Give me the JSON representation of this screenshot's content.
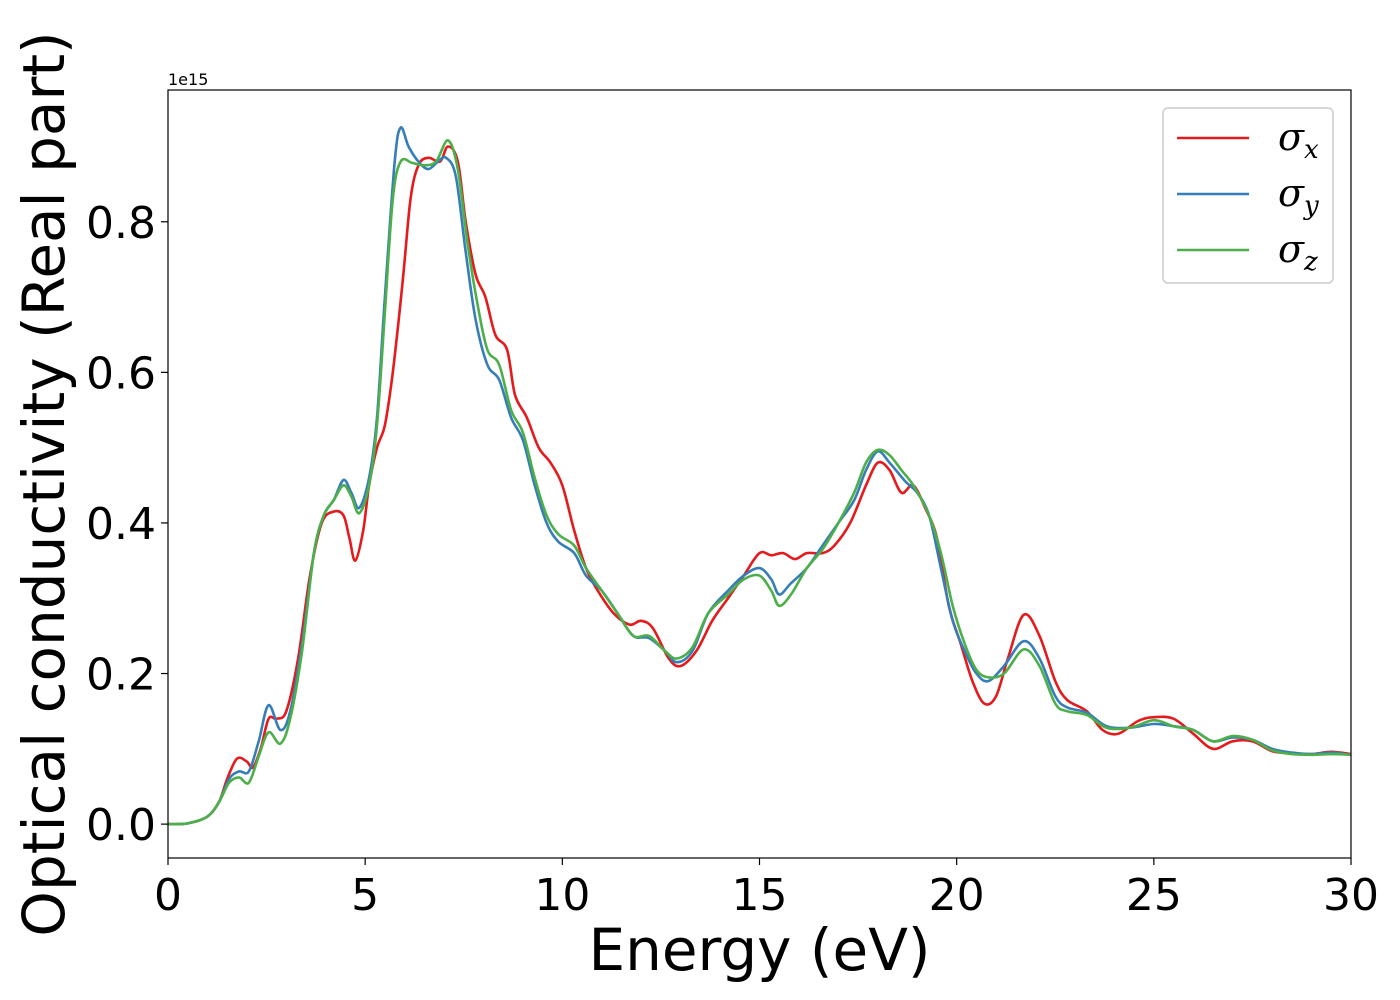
{
  "chart_data": {
    "type": "line",
    "title": "",
    "xlabel": "Energy (eV)",
    "ylabel": "Optical conductivity (Real part)",
    "y_offset_label": "1e15",
    "xlim": [
      0,
      30
    ],
    "ylim": [
      -0.045,
      0.975
    ],
    "x_ticks": [
      0,
      5,
      10,
      15,
      20,
      25,
      30
    ],
    "y_ticks": [
      0.0,
      0.2,
      0.4,
      0.6,
      0.8
    ],
    "y_tick_labels": [
      "0.0",
      "0.2",
      "0.4",
      "0.6",
      "0.8"
    ],
    "grid": false,
    "legend": "top-right",
    "series": [
      {
        "name": "σx",
        "base": "σ",
        "sub": "x",
        "color": "#e41a1c",
        "points": [
          [
            0,
            0
          ],
          [
            0.5,
            0.001
          ],
          [
            1,
            0.01
          ],
          [
            1.3,
            0.03
          ],
          [
            1.5,
            0.06
          ],
          [
            1.75,
            0.087
          ],
          [
            2.0,
            0.083
          ],
          [
            2.15,
            0.075
          ],
          [
            2.35,
            0.1
          ],
          [
            2.55,
            0.14
          ],
          [
            2.75,
            0.14
          ],
          [
            3.0,
            0.15
          ],
          [
            3.3,
            0.22
          ],
          [
            3.6,
            0.33
          ],
          [
            3.9,
            0.4
          ],
          [
            4.2,
            0.415
          ],
          [
            4.45,
            0.41
          ],
          [
            4.6,
            0.38
          ],
          [
            4.75,
            0.35
          ],
          [
            4.95,
            0.39
          ],
          [
            5.1,
            0.45
          ],
          [
            5.3,
            0.5
          ],
          [
            5.5,
            0.53
          ],
          [
            5.7,
            0.6
          ],
          [
            5.95,
            0.72
          ],
          [
            6.15,
            0.83
          ],
          [
            6.35,
            0.875
          ],
          [
            6.6,
            0.885
          ],
          [
            6.9,
            0.88
          ],
          [
            7.1,
            0.9
          ],
          [
            7.35,
            0.88
          ],
          [
            7.55,
            0.8
          ],
          [
            7.8,
            0.73
          ],
          [
            8.05,
            0.7
          ],
          [
            8.3,
            0.65
          ],
          [
            8.6,
            0.63
          ],
          [
            8.8,
            0.57
          ],
          [
            9.1,
            0.54
          ],
          [
            9.4,
            0.5
          ],
          [
            9.7,
            0.48
          ],
          [
            10.0,
            0.45
          ],
          [
            10.3,
            0.39
          ],
          [
            10.6,
            0.34
          ],
          [
            10.9,
            0.31
          ],
          [
            11.3,
            0.28
          ],
          [
            11.7,
            0.265
          ],
          [
            12.0,
            0.27
          ],
          [
            12.3,
            0.26
          ],
          [
            12.7,
            0.22
          ],
          [
            13.0,
            0.21
          ],
          [
            13.4,
            0.23
          ],
          [
            13.8,
            0.27
          ],
          [
            14.2,
            0.3
          ],
          [
            14.6,
            0.33
          ],
          [
            15.0,
            0.36
          ],
          [
            15.3,
            0.357
          ],
          [
            15.6,
            0.36
          ],
          [
            15.9,
            0.352
          ],
          [
            16.2,
            0.36
          ],
          [
            16.6,
            0.36
          ],
          [
            16.9,
            0.37
          ],
          [
            17.3,
            0.4
          ],
          [
            17.7,
            0.45
          ],
          [
            18.0,
            0.48
          ],
          [
            18.3,
            0.47
          ],
          [
            18.6,
            0.44
          ],
          [
            18.9,
            0.45
          ],
          [
            19.2,
            0.42
          ],
          [
            19.5,
            0.38
          ],
          [
            19.8,
            0.29
          ],
          [
            20.1,
            0.24
          ],
          [
            20.4,
            0.19
          ],
          [
            20.7,
            0.16
          ],
          [
            21.0,
            0.17
          ],
          [
            21.3,
            0.22
          ],
          [
            21.7,
            0.278
          ],
          [
            22.1,
            0.25
          ],
          [
            22.5,
            0.19
          ],
          [
            22.8,
            0.165
          ],
          [
            23.3,
            0.15
          ],
          [
            23.7,
            0.125
          ],
          [
            24.1,
            0.12
          ],
          [
            24.6,
            0.137
          ],
          [
            25.0,
            0.142
          ],
          [
            25.5,
            0.14
          ],
          [
            26.0,
            0.12
          ],
          [
            26.5,
            0.1
          ],
          [
            27.0,
            0.11
          ],
          [
            27.5,
            0.11
          ],
          [
            28.0,
            0.097
          ],
          [
            28.5,
            0.094
          ],
          [
            29.0,
            0.093
          ],
          [
            29.5,
            0.096
          ],
          [
            30,
            0.093
          ]
        ]
      },
      {
        "name": "σy",
        "base": "σ",
        "sub": "y",
        "color": "#377eb8",
        "points": [
          [
            0,
            0
          ],
          [
            0.5,
            0.001
          ],
          [
            1,
            0.01
          ],
          [
            1.3,
            0.03
          ],
          [
            1.55,
            0.06
          ],
          [
            1.8,
            0.07
          ],
          [
            2.05,
            0.07
          ],
          [
            2.3,
            0.11
          ],
          [
            2.55,
            0.158
          ],
          [
            2.85,
            0.125
          ],
          [
            3.1,
            0.15
          ],
          [
            3.4,
            0.24
          ],
          [
            3.7,
            0.36
          ],
          [
            3.95,
            0.41
          ],
          [
            4.2,
            0.43
          ],
          [
            4.45,
            0.457
          ],
          [
            4.65,
            0.44
          ],
          [
            4.85,
            0.42
          ],
          [
            5.1,
            0.46
          ],
          [
            5.3,
            0.54
          ],
          [
            5.5,
            0.7
          ],
          [
            5.75,
            0.88
          ],
          [
            5.9,
            0.925
          ],
          [
            6.1,
            0.9
          ],
          [
            6.35,
            0.88
          ],
          [
            6.6,
            0.87
          ],
          [
            6.85,
            0.88
          ],
          [
            7.05,
            0.885
          ],
          [
            7.3,
            0.86
          ],
          [
            7.55,
            0.76
          ],
          [
            7.8,
            0.67
          ],
          [
            8.1,
            0.61
          ],
          [
            8.4,
            0.59
          ],
          [
            8.7,
            0.54
          ],
          [
            9.0,
            0.51
          ],
          [
            9.3,
            0.45
          ],
          [
            9.6,
            0.4
          ],
          [
            9.9,
            0.375
          ],
          [
            10.3,
            0.36
          ],
          [
            10.6,
            0.33
          ],
          [
            11.0,
            0.31
          ],
          [
            11.4,
            0.28
          ],
          [
            11.8,
            0.25
          ],
          [
            12.2,
            0.247
          ],
          [
            12.6,
            0.23
          ],
          [
            12.9,
            0.215
          ],
          [
            13.3,
            0.23
          ],
          [
            13.7,
            0.28
          ],
          [
            14.2,
            0.31
          ],
          [
            14.6,
            0.33
          ],
          [
            15.0,
            0.34
          ],
          [
            15.3,
            0.325
          ],
          [
            15.5,
            0.305
          ],
          [
            15.8,
            0.32
          ],
          [
            16.2,
            0.34
          ],
          [
            16.6,
            0.37
          ],
          [
            17.0,
            0.4
          ],
          [
            17.4,
            0.43
          ],
          [
            17.7,
            0.47
          ],
          [
            18.0,
            0.495
          ],
          [
            18.3,
            0.48
          ],
          [
            18.7,
            0.455
          ],
          [
            19.0,
            0.44
          ],
          [
            19.3,
            0.41
          ],
          [
            19.6,
            0.34
          ],
          [
            19.9,
            0.27
          ],
          [
            20.2,
            0.23
          ],
          [
            20.5,
            0.2
          ],
          [
            20.8,
            0.19
          ],
          [
            21.2,
            0.21
          ],
          [
            21.7,
            0.243
          ],
          [
            22.1,
            0.22
          ],
          [
            22.5,
            0.17
          ],
          [
            22.8,
            0.155
          ],
          [
            23.3,
            0.148
          ],
          [
            23.8,
            0.13
          ],
          [
            24.4,
            0.128
          ],
          [
            25.0,
            0.133
          ],
          [
            25.5,
            0.13
          ],
          [
            26.0,
            0.125
          ],
          [
            26.5,
            0.11
          ],
          [
            27.0,
            0.115
          ],
          [
            27.5,
            0.112
          ],
          [
            28.0,
            0.1
          ],
          [
            28.5,
            0.095
          ],
          [
            29.0,
            0.093
          ],
          [
            29.5,
            0.095
          ],
          [
            30,
            0.092
          ]
        ]
      },
      {
        "name": "σz",
        "base": "σ",
        "sub": "z",
        "color": "#4daf4a",
        "points": [
          [
            0,
            0
          ],
          [
            0.5,
            0.001
          ],
          [
            1,
            0.01
          ],
          [
            1.3,
            0.03
          ],
          [
            1.55,
            0.055
          ],
          [
            1.8,
            0.062
          ],
          [
            2.05,
            0.055
          ],
          [
            2.3,
            0.09
          ],
          [
            2.55,
            0.122
          ],
          [
            2.85,
            0.107
          ],
          [
            3.1,
            0.14
          ],
          [
            3.4,
            0.23
          ],
          [
            3.7,
            0.36
          ],
          [
            3.95,
            0.41
          ],
          [
            4.2,
            0.43
          ],
          [
            4.45,
            0.45
          ],
          [
            4.65,
            0.435
          ],
          [
            4.85,
            0.413
          ],
          [
            5.1,
            0.45
          ],
          [
            5.3,
            0.53
          ],
          [
            5.5,
            0.68
          ],
          [
            5.7,
            0.83
          ],
          [
            5.9,
            0.88
          ],
          [
            6.2,
            0.878
          ],
          [
            6.5,
            0.875
          ],
          [
            6.8,
            0.88
          ],
          [
            7.1,
            0.908
          ],
          [
            7.35,
            0.87
          ],
          [
            7.6,
            0.77
          ],
          [
            7.85,
            0.69
          ],
          [
            8.1,
            0.63
          ],
          [
            8.4,
            0.61
          ],
          [
            8.7,
            0.55
          ],
          [
            9.0,
            0.52
          ],
          [
            9.3,
            0.46
          ],
          [
            9.6,
            0.41
          ],
          [
            9.9,
            0.385
          ],
          [
            10.3,
            0.37
          ],
          [
            10.6,
            0.34
          ],
          [
            11.0,
            0.31
          ],
          [
            11.4,
            0.28
          ],
          [
            11.8,
            0.25
          ],
          [
            12.2,
            0.25
          ],
          [
            12.6,
            0.23
          ],
          [
            12.9,
            0.22
          ],
          [
            13.3,
            0.235
          ],
          [
            13.7,
            0.28
          ],
          [
            14.2,
            0.305
          ],
          [
            14.6,
            0.325
          ],
          [
            15.0,
            0.33
          ],
          [
            15.3,
            0.31
          ],
          [
            15.5,
            0.29
          ],
          [
            15.8,
            0.305
          ],
          [
            16.2,
            0.34
          ],
          [
            16.6,
            0.365
          ],
          [
            17.0,
            0.4
          ],
          [
            17.4,
            0.44
          ],
          [
            17.7,
            0.48
          ],
          [
            18.0,
            0.497
          ],
          [
            18.3,
            0.49
          ],
          [
            18.6,
            0.47
          ],
          [
            18.9,
            0.45
          ],
          [
            19.3,
            0.41
          ],
          [
            19.6,
            0.36
          ],
          [
            19.9,
            0.29
          ],
          [
            20.2,
            0.24
          ],
          [
            20.5,
            0.205
          ],
          [
            20.8,
            0.195
          ],
          [
            21.2,
            0.2
          ],
          [
            21.7,
            0.232
          ],
          [
            22.1,
            0.21
          ],
          [
            22.5,
            0.16
          ],
          [
            22.8,
            0.15
          ],
          [
            23.3,
            0.145
          ],
          [
            23.8,
            0.128
          ],
          [
            24.4,
            0.128
          ],
          [
            25.0,
            0.138
          ],
          [
            25.5,
            0.13
          ],
          [
            26.0,
            0.125
          ],
          [
            26.5,
            0.11
          ],
          [
            27.0,
            0.117
          ],
          [
            27.5,
            0.112
          ],
          [
            28.0,
            0.098
          ],
          [
            28.5,
            0.093
          ],
          [
            29.0,
            0.092
          ],
          [
            29.5,
            0.093
          ],
          [
            30,
            0.092
          ]
        ]
      }
    ]
  }
}
